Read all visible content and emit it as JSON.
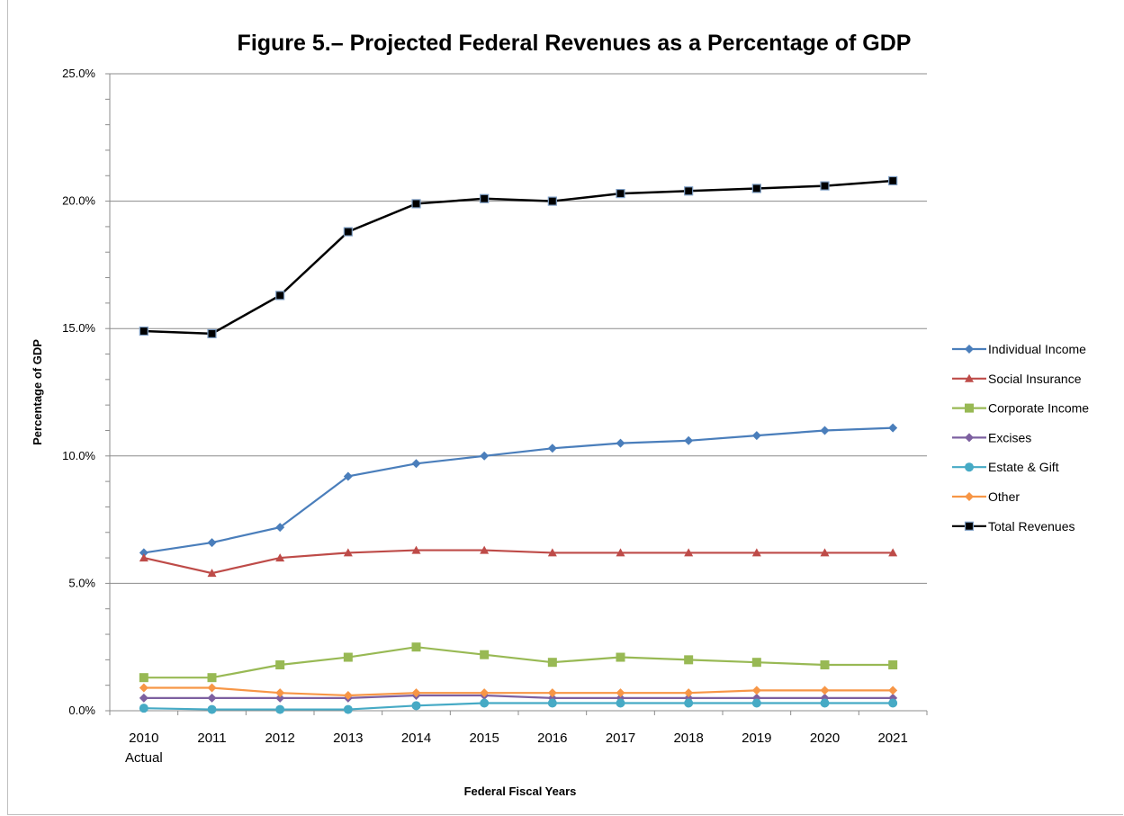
{
  "chart_data": {
    "type": "line",
    "title": "Figure 5.– Projected Federal Revenues as a Percentage of GDP",
    "xlabel": "Federal Fiscal Years",
    "ylabel": "Percentage of GDP",
    "categories": [
      "2010",
      "2011",
      "2012",
      "2013",
      "2014",
      "2015",
      "2016",
      "2017",
      "2018",
      "2019",
      "2020",
      "2021"
    ],
    "category_sublabels": [
      "Actual",
      "",
      "",
      "",
      "",
      "",
      "",
      "",
      "",
      "",
      "",
      ""
    ],
    "ylim": [
      0,
      25
    ],
    "yticks": [
      "0.0%",
      "5.0%",
      "10.0%",
      "15.0%",
      "20.0%",
      "25.0%"
    ],
    "grid": "horizontal",
    "legend_position": "right",
    "series": [
      {
        "name": "Individual Income",
        "color": "#4a7ebb",
        "marker": "diamond",
        "values": [
          6.2,
          6.6,
          7.2,
          9.2,
          9.7,
          10.0,
          10.3,
          10.5,
          10.6,
          10.8,
          11.0,
          11.1
        ]
      },
      {
        "name": "Social Insurance",
        "color": "#be4b48",
        "marker": "triangle",
        "values": [
          6.0,
          5.4,
          6.0,
          6.2,
          6.3,
          6.3,
          6.2,
          6.2,
          6.2,
          6.2,
          6.2,
          6.2
        ]
      },
      {
        "name": "Corporate Income",
        "color": "#98b954",
        "marker": "square",
        "values": [
          1.3,
          1.3,
          1.8,
          2.1,
          2.5,
          2.2,
          1.9,
          2.1,
          2.0,
          1.9,
          1.8,
          1.8
        ]
      },
      {
        "name": "Excises",
        "color": "#7d60a0",
        "marker": "diamond",
        "values": [
          0.5,
          0.5,
          0.5,
          0.5,
          0.6,
          0.6,
          0.5,
          0.5,
          0.5,
          0.5,
          0.5,
          0.5
        ]
      },
      {
        "name": "Estate & Gift",
        "color": "#46aac5",
        "marker": "circle",
        "values": [
          0.1,
          0.05,
          0.05,
          0.05,
          0.2,
          0.3,
          0.3,
          0.3,
          0.3,
          0.3,
          0.3,
          0.3
        ]
      },
      {
        "name": "Other",
        "color": "#f79646",
        "marker": "diamond",
        "values": [
          0.9,
          0.9,
          0.7,
          0.6,
          0.7,
          0.7,
          0.7,
          0.7,
          0.7,
          0.8,
          0.8,
          0.8
        ]
      },
      {
        "name": "Total Revenues",
        "color": "#000000",
        "marker": "square-outline",
        "values": [
          14.9,
          14.8,
          16.3,
          18.8,
          19.9,
          20.1,
          20.0,
          20.3,
          20.4,
          20.5,
          20.6,
          20.8
        ]
      }
    ]
  }
}
